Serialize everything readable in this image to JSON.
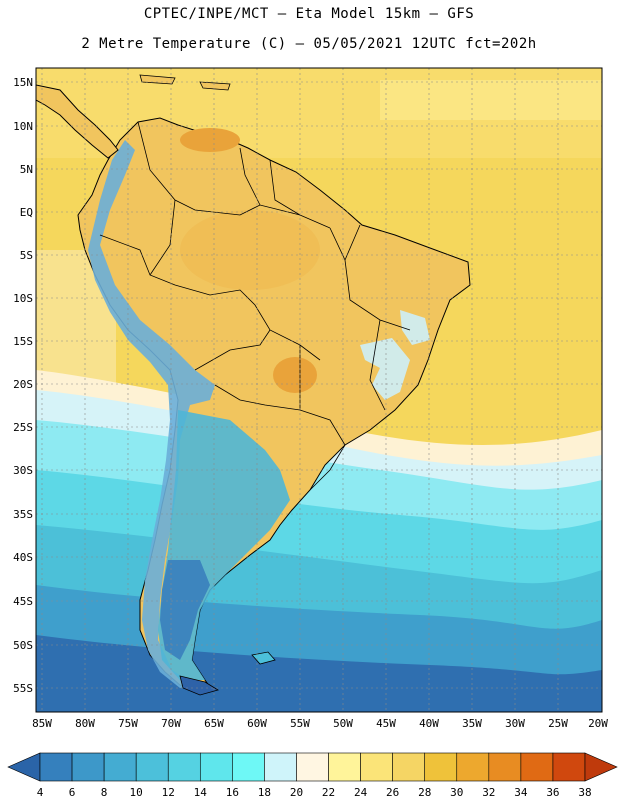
{
  "header": {
    "line1": "CPTEC/INPE/MCT –  Eta Model 15km – GFS",
    "line2": "2 Metre Temperature (C) – 05/05/2021 12UTC fct=202h"
  },
  "axes": {
    "lat_labels": [
      "15N",
      "10N",
      "5N",
      "EQ",
      "5S",
      "10S",
      "15S",
      "20S",
      "25S",
      "30S",
      "35S",
      "40S",
      "45S",
      "50S",
      "55S"
    ],
    "lon_labels": [
      "85W",
      "80W",
      "75W",
      "70W",
      "65W",
      "60W",
      "55W",
      "50W",
      "45W",
      "40W",
      "35W",
      "30W",
      "25W",
      "20W"
    ]
  },
  "colorbar": {
    "labels": [
      "4",
      "6",
      "8",
      "10",
      "12",
      "14",
      "16",
      "18",
      "20",
      "22",
      "24",
      "26",
      "28",
      "30",
      "32",
      "34",
      "36",
      "38"
    ],
    "colors": [
      "#2a64a8",
      "#3580bd",
      "#3d98c9",
      "#44acd2",
      "#4cc0da",
      "#55d2e2",
      "#5fe6ec",
      "#6ef8f6",
      "#cff4fa",
      "#fff6e2",
      "#fff49a",
      "#fbe478",
      "#f5d564",
      "#efc23a",
      "#eda82e",
      "#e88c22",
      "#e06a14",
      "#d0480e",
      "#bf3a0c"
    ]
  },
  "map": {
    "ocean_color": "#f6d65a",
    "land_color": "#f1c55e",
    "cold_south_color": "#2e62a8",
    "mid_south_color": "#4ac0d8",
    "andes_color": "#64a2d2"
  }
}
